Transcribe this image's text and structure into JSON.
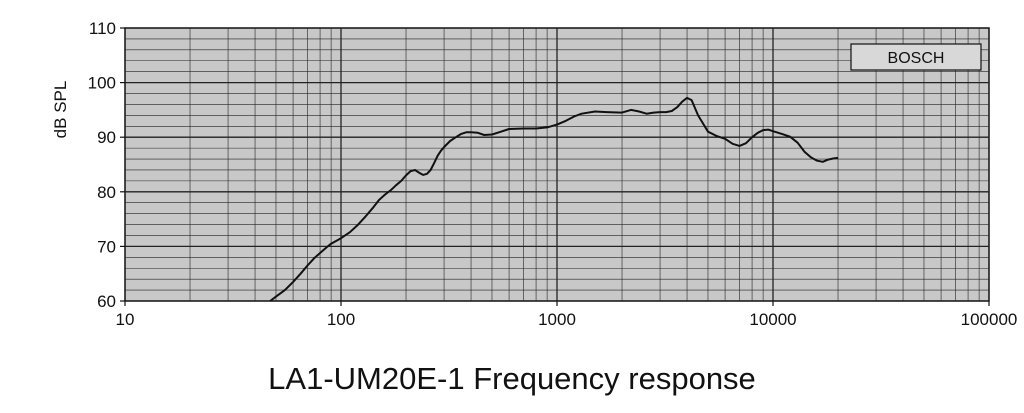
{
  "chart_data": {
    "type": "line",
    "title": "LA1-UM20E-1 Frequency response",
    "xlabel": "",
    "ylabel": "dB SPL",
    "xscale": "log",
    "xlim": [
      10,
      100000
    ],
    "ylim": [
      60,
      110
    ],
    "x_ticks": [
      10,
      100,
      1000,
      10000,
      100000
    ],
    "x_tick_labels": [
      "10",
      "100",
      "1000",
      "10000",
      "100000"
    ],
    "y_ticks": [
      60,
      70,
      80,
      90,
      100,
      110
    ],
    "y_tick_labels": [
      "60",
      "70",
      "80",
      "90",
      "100",
      "110"
    ],
    "grid": true,
    "plot_background": "#c8c8c8",
    "line_color": "#111111",
    "legend": {
      "label": "BOSCH",
      "placement": "top-right"
    },
    "series": [
      {
        "x": [
          47,
          50,
          55,
          60,
          65,
          70,
          75,
          80,
          85,
          90,
          100,
          110,
          120,
          130,
          140,
          150,
          160,
          170,
          180,
          190,
          200,
          210,
          220,
          230,
          240,
          250,
          260,
          270,
          280,
          290,
          300,
          320,
          340,
          360,
          380,
          400,
          430,
          460,
          500,
          550,
          600,
          700,
          800,
          900,
          1000,
          1100,
          1200,
          1300,
          1500,
          1700,
          2000,
          2200,
          2400,
          2600,
          2800,
          3000,
          3200,
          3400,
          3600,
          3800,
          4000,
          4200,
          4500,
          5000,
          5500,
          6000,
          6500,
          7000,
          7500,
          8000,
          8500,
          9000,
          9500,
          10000,
          11000,
          12000,
          13000,
          14000,
          15000,
          16000,
          17000,
          18000,
          19000,
          20000
        ],
        "y": [
          60,
          60.8,
          62,
          63.5,
          65,
          66.5,
          67.8,
          68.8,
          69.7,
          70.5,
          71.5,
          72.6,
          74,
          75.5,
          77,
          78.5,
          79.5,
          80.3,
          81.2,
          82,
          83,
          83.8,
          84,
          83.5,
          83.1,
          83.3,
          84,
          85.3,
          86.6,
          87.5,
          88.2,
          89.3,
          90,
          90.6,
          90.9,
          90.9,
          90.8,
          90.4,
          90.5,
          91,
          91.5,
          91.6,
          91.6,
          91.8,
          92.3,
          93,
          93.8,
          94.3,
          94.7,
          94.6,
          94.5,
          95,
          94.7,
          94.3,
          94.5,
          94.6,
          94.6,
          94.8,
          95.5,
          96.5,
          97.2,
          96.8,
          94,
          91,
          90.2,
          89.7,
          88.8,
          88.4,
          88.9,
          90,
          90.8,
          91.3,
          91.4,
          91.1,
          90.6,
          90.1,
          89,
          87.3,
          86.3,
          85.7,
          85.5,
          85.9,
          86.1,
          86.2
        ]
      }
    ]
  }
}
